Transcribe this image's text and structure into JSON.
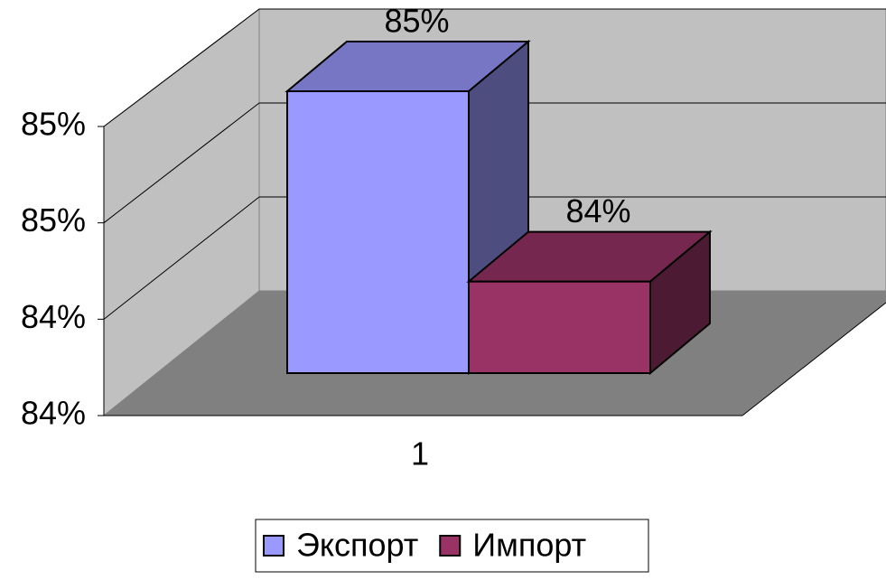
{
  "chart_data": {
    "type": "bar3d",
    "categories": [
      "1"
    ],
    "series": [
      {
        "name": "Экспорт",
        "color": "#9999ff",
        "values": [
          85.17
        ],
        "value_labels": [
          "85%"
        ]
      },
      {
        "name": "Импорт",
        "color": "#993366",
        "values": [
          84.38
        ],
        "value_labels": [
          "84%"
        ]
      }
    ],
    "ylim": [
      84,
      85.2
    ],
    "yticks": [
      {
        "value": 84,
        "label": "84%"
      },
      {
        "value": 84.4,
        "label": "84%"
      },
      {
        "value": 84.8,
        "label": "85%"
      },
      {
        "value": 85.2,
        "label": "85%"
      }
    ],
    "grid": true,
    "legend": "bottom"
  }
}
